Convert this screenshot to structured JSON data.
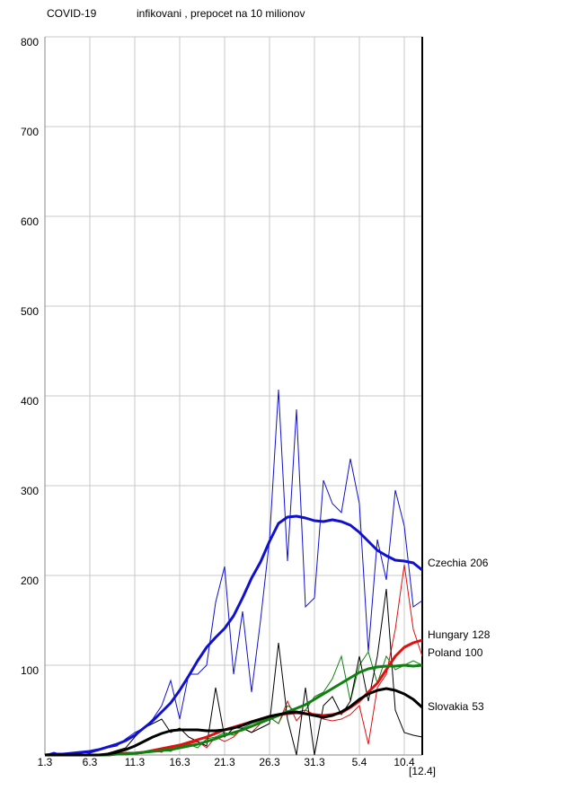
{
  "chart_data": {
    "type": "line",
    "title": "COVID-19",
    "subtitle": "infikovani , prepocet na 10 milionov",
    "categories": [
      "1.3",
      null,
      null,
      null,
      null,
      "6.3",
      null,
      null,
      null,
      null,
      "11.3",
      null,
      null,
      null,
      null,
      "16.3",
      null,
      null,
      null,
      null,
      "21.3",
      null,
      null,
      null,
      null,
      "26.3",
      null,
      null,
      null,
      null,
      "31.3",
      null,
      null,
      null,
      null,
      "5.4",
      null,
      null,
      null,
      null,
      "10.4",
      null,
      "[12.4]"
    ],
    "ylim": [
      0,
      800
    ],
    "yticks": [
      100,
      200,
      300,
      400,
      500,
      600,
      700,
      800
    ],
    "grid": true,
    "series": [
      {
        "name": "Czechia",
        "color": "#1010d0",
        "values": [
          0,
          1,
          1,
          2,
          3,
          4,
          6,
          9,
          12,
          16,
          22,
          30,
          38,
          48,
          58,
          72,
          88,
          105,
          120,
          131,
          141,
          155,
          175,
          197,
          215,
          238,
          258,
          265,
          266,
          264,
          261,
          260,
          262,
          260,
          256,
          248,
          238,
          228,
          222,
          217,
          216,
          214,
          206
        ],
        "daily": [
          0,
          3,
          0,
          2,
          3,
          2,
          5,
          8,
          10,
          18,
          25,
          30,
          40,
          55,
          83,
          40,
          90,
          90,
          100,
          170,
          210,
          90,
          160,
          70,
          150,
          240,
          407,
          216,
          385,
          165,
          175,
          306,
          280,
          270,
          330,
          280,
          115,
          240,
          195,
          295,
          255,
          165,
          172
        ]
      },
      {
        "name": "Hungary",
        "color": "#e01010",
        "values": [
          0,
          0,
          0,
          0,
          0,
          0,
          0,
          0,
          1,
          2,
          2,
          3,
          5,
          7,
          9,
          11,
          14,
          17,
          20,
          24,
          28,
          31,
          34,
          37,
          40,
          43,
          45,
          46,
          47,
          46,
          45,
          44,
          45,
          47,
          53,
          60,
          70,
          80,
          95,
          110,
          120,
          125,
          128
        ],
        "daily": [
          0,
          0,
          0,
          0,
          0,
          0,
          0,
          0,
          1,
          2,
          1,
          2,
          5,
          3,
          10,
          10,
          12,
          15,
          8,
          20,
          15,
          20,
          30,
          25,
          35,
          42,
          35,
          60,
          38,
          50,
          45,
          40,
          38,
          40,
          45,
          55,
          12,
          75,
          90,
          140,
          212,
          140,
          110
        ]
      },
      {
        "name": "Poland",
        "color": "#108010",
        "values": [
          0,
          0,
          0,
          0,
          0,
          0,
          0,
          0,
          1,
          1,
          2,
          3,
          4,
          5,
          6,
          8,
          10,
          12,
          15,
          18,
          22,
          25,
          28,
          32,
          36,
          40,
          44,
          48,
          52,
          56,
          62,
          68,
          74,
          80,
          86,
          92,
          96,
          98,
          99,
          99,
          100,
          99,
          100
        ],
        "daily": [
          0,
          0,
          0,
          0,
          0,
          0,
          0,
          0,
          1,
          2,
          1,
          3,
          5,
          6,
          4,
          10,
          12,
          8,
          18,
          20,
          25,
          22,
          30,
          35,
          38,
          42,
          35,
          55,
          48,
          50,
          65,
          70,
          85,
          110,
          60,
          100,
          115,
          80,
          110,
          95,
          100,
          105,
          100
        ]
      },
      {
        "name": "Slovakia",
        "color": "#000000",
        "values": [
          0,
          0,
          0,
          0,
          0,
          0,
          0,
          1,
          3,
          6,
          10,
          15,
          20,
          24,
          27,
          28,
          28,
          28,
          27,
          27,
          28,
          30,
          33,
          37,
          40,
          43,
          45,
          47,
          48,
          46,
          44,
          42,
          44,
          48,
          54,
          62,
          68,
          72,
          74,
          72,
          68,
          62,
          53
        ],
        "daily": [
          0,
          0,
          0,
          0,
          0,
          0,
          0,
          2,
          5,
          8,
          20,
          30,
          35,
          40,
          25,
          30,
          20,
          15,
          10,
          75,
          20,
          30,
          30,
          25,
          30,
          35,
          125,
          40,
          0,
          75,
          0,
          55,
          65,
          45,
          60,
          110,
          60,
          110,
          185,
          50,
          25,
          22,
          20
        ]
      }
    ]
  }
}
